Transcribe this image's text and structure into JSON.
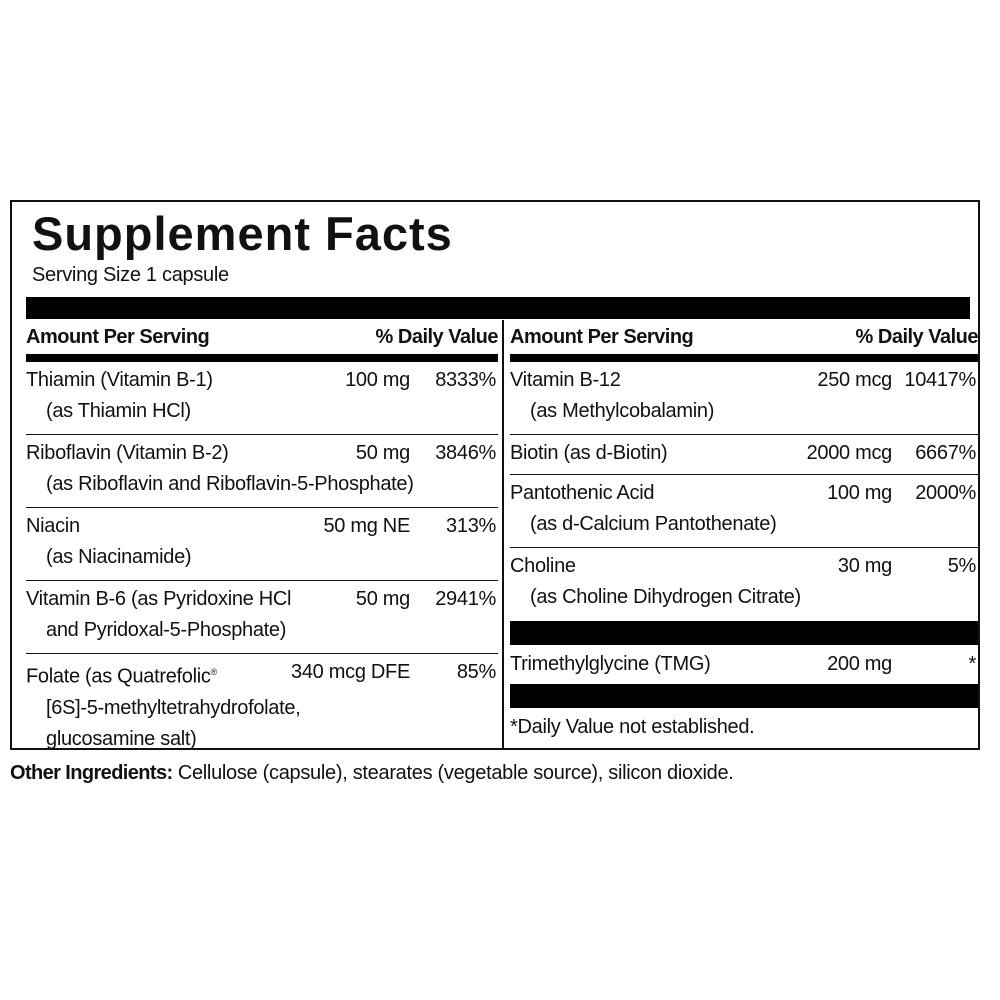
{
  "title": "Supplement Facts",
  "serving_size": "Serving Size 1 capsule",
  "headers": {
    "amount": "Amount Per Serving",
    "dv": "% Daily Value"
  },
  "left": [
    {
      "name": "Thiamin (Vitamin B-1)",
      "sub": [
        "(as Thiamin HCl)"
      ],
      "amount": "100 mg",
      "dv": "8333%"
    },
    {
      "name": "Riboflavin (Vitamin B-2)",
      "sub": [
        "(as Riboflavin and Riboflavin-5-Phosphate)"
      ],
      "amount": "50 mg",
      "dv": "3846%"
    },
    {
      "name": "Niacin",
      "sub": [
        "(as Niacinamide)"
      ],
      "amount": "50 mg NE",
      "dv": "313%"
    },
    {
      "name": "Vitamin B-6 (as Pyridoxine HCl",
      "sub": [
        "and Pyridoxal-5-Phosphate)"
      ],
      "amount": "50 mg",
      "dv": "2941%"
    },
    {
      "name": "Folate (as Quatrefolic",
      "reg": "®",
      "sub": [
        "[6S]-5-methyltetrahydrofolate,",
        "glucosamine salt)"
      ],
      "amount": "340 mcg DFE",
      "dv": "85%"
    }
  ],
  "right": [
    {
      "name": "Vitamin B-12",
      "sub": [
        "(as Methylcobalamin)"
      ],
      "amount": "250 mcg",
      "dv": "10417%"
    },
    {
      "name": "Biotin (as d-Biotin)",
      "amount": "2000 mcg",
      "dv": "6667%"
    },
    {
      "name": "Pantothenic Acid",
      "sub": [
        "(as d-Calcium Pantothenate)"
      ],
      "amount": "100 mg",
      "dv": "2000%"
    },
    {
      "name": "Choline",
      "sub": [
        "(as Choline Dihydrogen Citrate)"
      ],
      "amount": "30 mg",
      "dv": "5%"
    },
    {
      "name": "Trimethylglycine (TMG)",
      "amount": "200 mg",
      "dv": "*"
    }
  ],
  "footnote": "*Daily Value not established.",
  "other_ingredients": {
    "label": "Other Ingredients:",
    "text": " Cellulose (capsule), stearates (vegetable source), silicon dioxide."
  }
}
